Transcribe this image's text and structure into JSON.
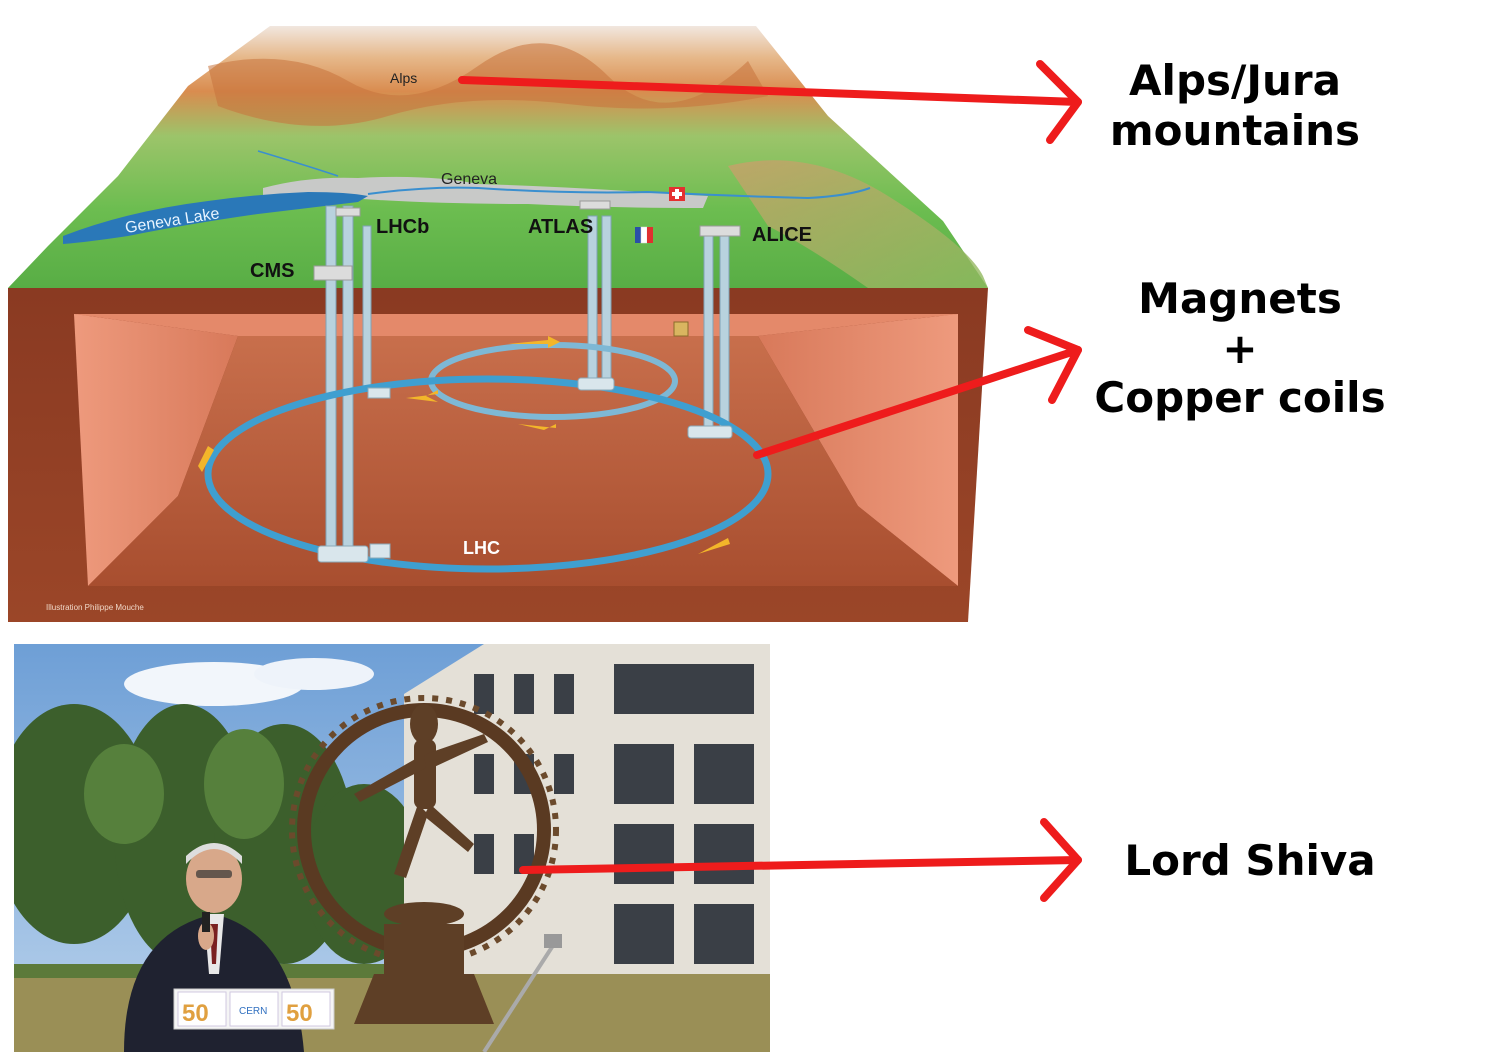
{
  "diagram": {
    "map_labels": {
      "alps": "Alps",
      "geneva": "Geneva",
      "geneva_lake": "Geneva Lake",
      "lhcb": "LHCb",
      "atlas": "ATLAS",
      "alice": "ALICE",
      "cms": "CMS",
      "lhc": "LHC"
    },
    "credit": "Illustration Philippe Mouche"
  },
  "annotations": {
    "alps_line1": "Alps/Jura",
    "alps_line2": "mountains",
    "magnets_line1": "Magnets",
    "magnets_line2": "+",
    "magnets_line3": "Copper coils",
    "shiva": "Lord Shiva"
  },
  "photo": {
    "podium_logo_text": "50",
    "podium_logo_sub": "CERN"
  },
  "colors": {
    "arrow": "#ee1c1c",
    "ring": "#3f9fd0",
    "ground": "#a4472c",
    "grass": "#62b24a",
    "lake": "#2a78b8"
  }
}
